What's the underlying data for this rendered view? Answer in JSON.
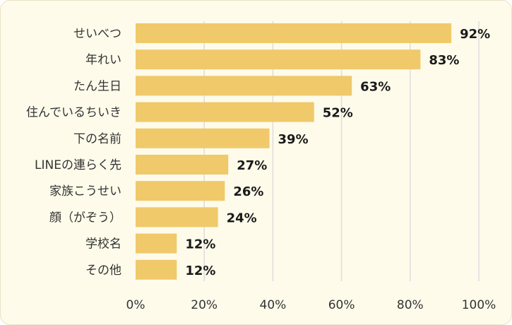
{
  "chart_data": {
    "type": "bar",
    "orientation": "horizontal",
    "categories": [
      "せいべつ",
      "年れい",
      "たん生日",
      "住んでいるちいき",
      "下の名前",
      "LINEの連らく先",
      "家族こうせい",
      "顔（がぞう）",
      "学校名",
      "その他"
    ],
    "values": [
      92,
      83,
      63,
      52,
      39,
      27,
      26,
      24,
      12,
      12
    ],
    "value_labels": [
      "92%",
      "83%",
      "63%",
      "52%",
      "39%",
      "27%",
      "26%",
      "24%",
      "12%",
      "12%"
    ],
    "x_ticks": [
      0,
      20,
      40,
      60,
      80,
      100
    ],
    "x_tick_labels": [
      "0%",
      "20%",
      "40%",
      "60%",
      "80%",
      "100%"
    ],
    "xlim": [
      0,
      100
    ],
    "title": "",
    "xlabel": "",
    "ylabel": "",
    "grid": "vertical",
    "legend": "none",
    "bar_color": "#f0c96a",
    "grid_color": "#dddddd",
    "background_color": "#fefbea"
  }
}
